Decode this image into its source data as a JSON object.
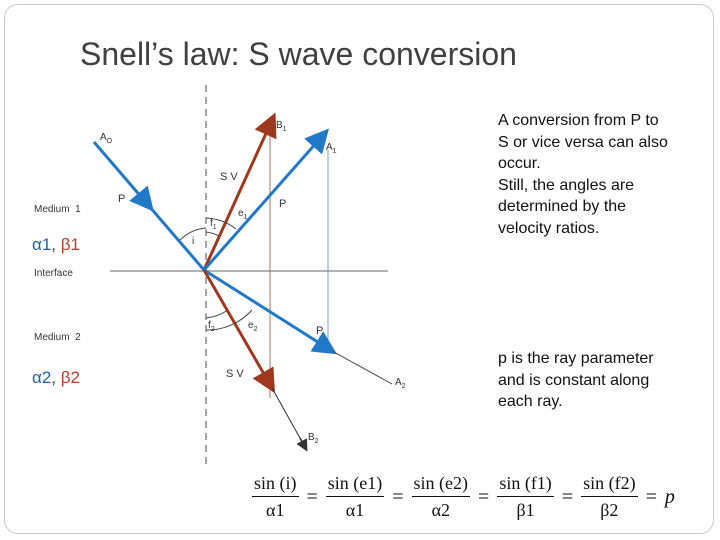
{
  "title": "Snell’s law: S wave conversion",
  "side_labels": {
    "medium1": {
      "alpha": "α1",
      "sep": ", ",
      "beta": "β1"
    },
    "medium2": {
      "alpha": "α2",
      "sep": ", ",
      "beta": "β2"
    }
  },
  "diagram_labels": {
    "a0": "A",
    "a0_sub": "O",
    "b1": "B",
    "b1_sub": "1",
    "a1": "A",
    "a1_sub": "1",
    "a2": "A",
    "a2_sub": "2",
    "b2": "B",
    "b2_sub": "2",
    "medium1": "Medium  1",
    "medium2": "Medium  2",
    "interface": "Interface",
    "p_incident": "P",
    "sv_reflected": "S V",
    "p_reflected": "P",
    "p_transmitted": "P",
    "sv_transmitted": "S V",
    "angle_i": "i",
    "angle_f1": "f",
    "angle_f1_sub": "1",
    "angle_e1": "e",
    "angle_e1_sub": "1",
    "angle_f2": "f",
    "angle_f2_sub": "2",
    "angle_e2": "e",
    "angle_e2_sub": "2"
  },
  "text_block_1": {
    "line1": "A conversion from P to",
    "line2": "S or vice versa can also",
    "line3": "occur.",
    "line4": "Still, the angles are",
    "line5": "determined by the",
    "line6": "velocity ratios."
  },
  "text_block_2": {
    "line1": "p is the ray parameter",
    "line2": "and is constant along",
    "line3": "each ray."
  },
  "equation": {
    "terms": [
      {
        "num": "sin (i)",
        "den": "α1"
      },
      {
        "num": "sin (e1)",
        "den": "α1"
      },
      {
        "num": "sin (e2)",
        "den": "α2"
      },
      {
        "num": "sin (f1)",
        "den": "β1"
      },
      {
        "num": "sin (f2)",
        "den": "β2"
      }
    ],
    "equals": "=",
    "result": "p"
  },
  "colors": {
    "p_ray": "#1F78C8",
    "s_ray": "#A0381E",
    "guide": "#888888",
    "interface": "#999999"
  }
}
